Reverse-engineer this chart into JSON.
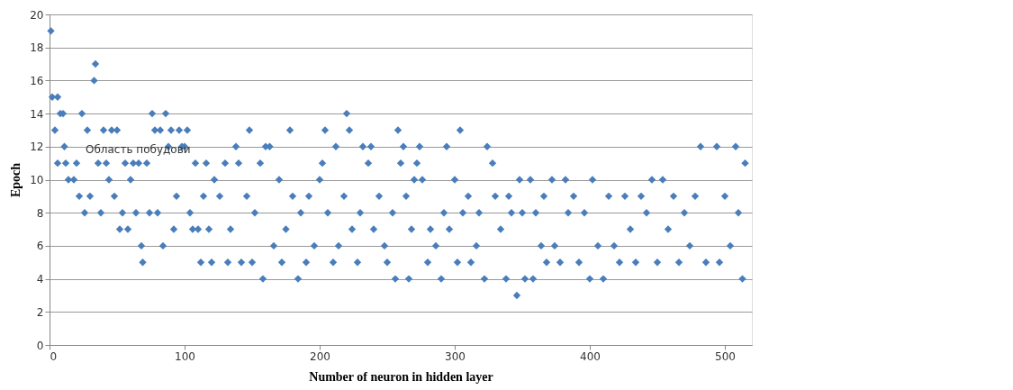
{
  "chart_data": {
    "type": "scatter",
    "xlabel": "Number of neuron in hidden layer",
    "ylabel": "Epoch",
    "annotations": [
      "Область побудови"
    ],
    "xlim": [
      0,
      520
    ],
    "xticks": [
      0,
      100,
      200,
      300,
      400,
      500
    ],
    "ylim": [
      0,
      20
    ],
    "yticks": [
      0,
      2,
      4,
      6,
      8,
      10,
      12,
      14,
      16,
      18,
      20
    ],
    "grid": "y",
    "marker": "diamond",
    "series": [
      {
        "color": "#4a7ebb",
        "x": [
          1,
          2,
          4,
          6,
          6,
          8,
          10,
          11,
          12,
          14,
          18,
          20,
          22,
          24,
          26,
          28,
          30,
          33,
          34,
          36,
          38,
          40,
          42,
          44,
          46,
          48,
          50,
          52,
          54,
          56,
          58,
          60,
          62,
          64,
          66,
          68,
          69,
          72,
          74,
          76,
          78,
          80,
          82,
          84,
          86,
          88,
          90,
          92,
          94,
          96,
          98,
          100,
          102,
          104,
          106,
          108,
          110,
          112,
          114,
          116,
          118,
          120,
          122,
          126,
          130,
          132,
          134,
          138,
          140,
          142,
          146,
          148,
          150,
          152,
          156,
          158,
          160,
          163,
          166,
          170,
          172,
          175,
          178,
          180,
          184,
          186,
          190,
          192,
          196,
          200,
          202,
          204,
          206,
          210,
          212,
          214,
          218,
          220,
          222,
          224,
          228,
          230,
          232,
          236,
          238,
          240,
          244,
          248,
          250,
          254,
          256,
          258,
          260,
          262,
          264,
          266,
          268,
          270,
          272,
          274,
          276,
          280,
          282,
          286,
          290,
          292,
          294,
          296,
          300,
          302,
          304,
          306,
          310,
          312,
          316,
          318,
          322,
          324,
          328,
          330,
          334,
          338,
          340,
          342,
          346,
          348,
          350,
          352,
          356,
          358,
          360,
          364,
          366,
          368,
          372,
          374,
          378,
          382,
          384,
          388,
          392,
          396,
          400,
          402,
          406,
          410,
          414,
          418,
          422,
          426,
          430,
          434,
          438,
          442,
          446,
          450,
          454,
          458,
          462,
          466,
          470,
          474,
          478,
          482,
          486,
          494,
          496,
          500,
          504,
          508,
          510,
          513,
          515
        ],
        "values": [
          19,
          15,
          13,
          15,
          11,
          14,
          14,
          12,
          11,
          10,
          10,
          11,
          9,
          14,
          8,
          13,
          9,
          16,
          17,
          11,
          8,
          13,
          11,
          10,
          13,
          9,
          13,
          7,
          8,
          11,
          7,
          10,
          11,
          8,
          11,
          6,
          5,
          11,
          8,
          14,
          13,
          8,
          13,
          6,
          14,
          12,
          13,
          7,
          9,
          13,
          12,
          12,
          13,
          8,
          7,
          11,
          7,
          5,
          9,
          11,
          7,
          5,
          10,
          9,
          11,
          5,
          7,
          12,
          11,
          5,
          9,
          13,
          5,
          8,
          11,
          4,
          12,
          12,
          6,
          10,
          5,
          7,
          13,
          9,
          4,
          8,
          5,
          9,
          6,
          10,
          11,
          13,
          8,
          5,
          12,
          6,
          9,
          14,
          13,
          7,
          5,
          8,
          12,
          11,
          12,
          7,
          9,
          6,
          5,
          8,
          4,
          13,
          11,
          12,
          9,
          4,
          7,
          10,
          11,
          12,
          10,
          5,
          7,
          6,
          4,
          8,
          12,
          7,
          10,
          5,
          13,
          8,
          9,
          5,
          6,
          8,
          4,
          12,
          11,
          9,
          7,
          4,
          9,
          8,
          3,
          10,
          8,
          4,
          10,
          4,
          8,
          6,
          9,
          5,
          10,
          6,
          5,
          10,
          8,
          9,
          5,
          8,
          4,
          10,
          6,
          4,
          9,
          6,
          5,
          9,
          7,
          5,
          9,
          8,
          10,
          5,
          10,
          7,
          9,
          5,
          8,
          6,
          9,
          12,
          5,
          12,
          5,
          9,
          6,
          12,
          8,
          4,
          11
        ]
      }
    ]
  }
}
